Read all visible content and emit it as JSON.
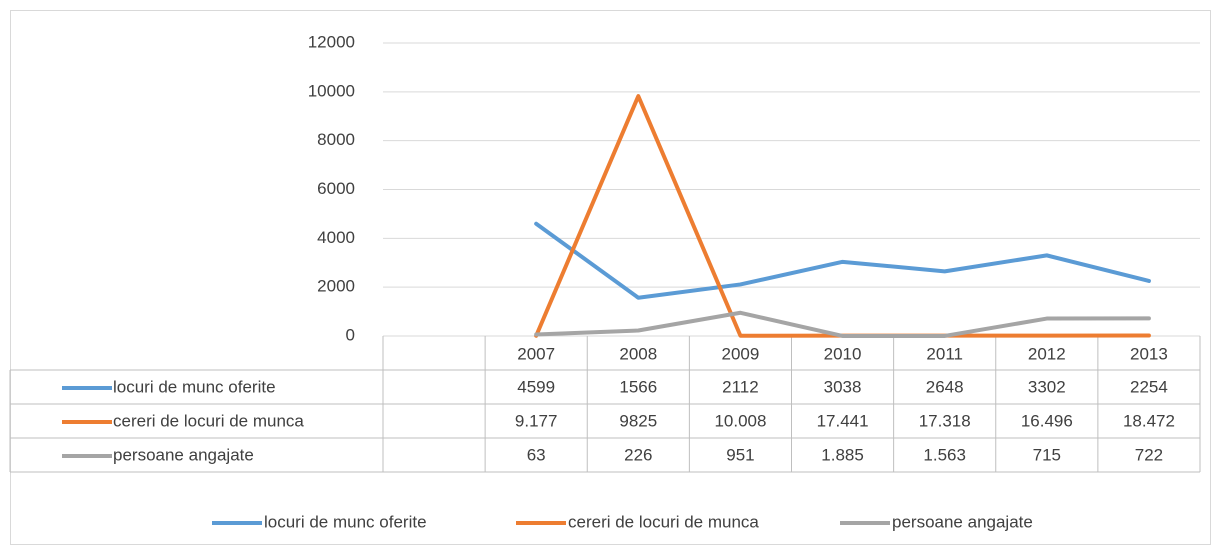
{
  "chart_data": {
    "type": "line",
    "categories": [
      null,
      "2007",
      "2008",
      "2009",
      "2010",
      "2011",
      "2012",
      "2013"
    ],
    "series": [
      {
        "name": "locuri de munc oferite",
        "color": "#5b9bd5",
        "values": [
          null,
          4599,
          1566,
          2112,
          3038,
          2648,
          3302,
          2254
        ]
      },
      {
        "name": "cereri de locuri de munca",
        "color": "#ed7d31",
        "values": [
          null,
          9.177,
          9825,
          10.008,
          17.441,
          17.318,
          16.496,
          18.472
        ]
      },
      {
        "name": "persoane angajate",
        "color": "#a5a5a5",
        "values": [
          null,
          63,
          226,
          951,
          1.885,
          1.563,
          715,
          722
        ]
      }
    ],
    "ylim": [
      0,
      12000
    ],
    "yticks": [
      0,
      2000,
      4000,
      6000,
      8000,
      10000,
      12000
    ],
    "grid": true,
    "legend": "bottom"
  }
}
